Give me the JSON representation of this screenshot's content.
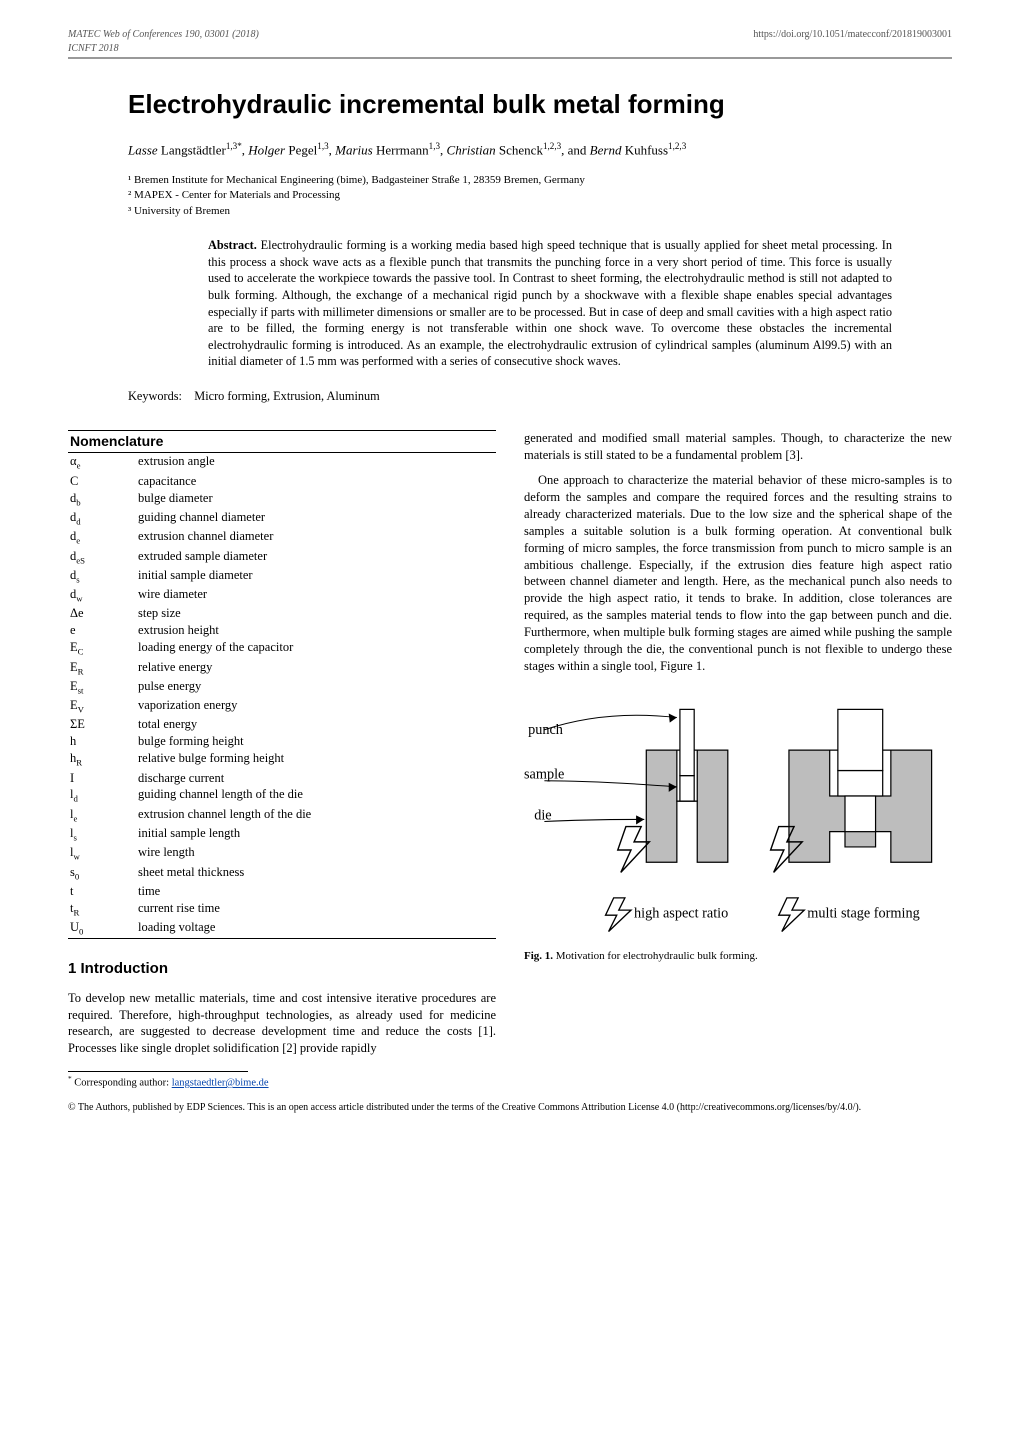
{
  "header": {
    "left_line1": "MATEC Web of Conferences 190, 03001 (2018)",
    "left_line2": "ICNFT 2018",
    "right": "https://doi.org/10.1051/matecconf/201819003001"
  },
  "title": "Electrohydraulic incremental bulk metal forming",
  "authors_html": "<span class='first'>Lasse</span> Langstädtler<sup>1,3*</sup>, <span class='first'>Holger</span> Pegel<sup>1,3</sup>, <span class='first'>Marius</span> Herrmann<sup>1,3</sup>, <span class='first'>Christian</span> Schenck<sup>1,2,3</sup>, and <span class='first'>Bernd</span> Kuhfuss<sup>1,2,3</sup>",
  "affiliations": [
    "¹ Bremen Institute for Mechanical Engineering (bime), Badgasteiner Straße 1, 28359 Bremen, Germany",
    "² MAPEX - Center for Materials and Processing",
    "³ University of Bremen"
  ],
  "abstract": {
    "label": "Abstract.",
    "text": "Electrohydraulic forming is a working media based high speed technique that is usually applied for sheet metal processing. In this process a shock wave acts as a flexible punch that transmits the punching force in a very short period of time. This force is usually used to accelerate the workpiece towards the passive tool. In Contrast to sheet forming, the electrohydraulic method is still not adapted to bulk forming. Although, the exchange of a mechanical rigid punch by a shockwave with a flexible shape enables special advantages especially if parts with millimeter dimensions or smaller are to be processed. But in case of deep and small cavities with a high aspect ratio are to be filled, the forming energy is not transferable within one shock wave. To overcome these obstacles the incremental electrohydraulic forming is introduced. As an example, the electrohydraulic extrusion of cylindrical samples (aluminum Al99.5) with an initial diameter of 1.5 mm was performed with a series of consecutive shock waves."
  },
  "keywords": {
    "label": "Keywords:",
    "text": "Micro forming, Extrusion, Aluminum"
  },
  "nomenclature": {
    "title": "Nomenclature",
    "rows": [
      {
        "sym": "α<sub>e</sub>",
        "desc": "extrusion angle"
      },
      {
        "sym": "C",
        "desc": "capacitance"
      },
      {
        "sym": "d<sub>b</sub>",
        "desc": "bulge diameter"
      },
      {
        "sym": "d<sub>d</sub>",
        "desc": "guiding channel diameter"
      },
      {
        "sym": "d<sub>e</sub>",
        "desc": "extrusion channel diameter"
      },
      {
        "sym": "d<sub>eS</sub>",
        "desc": "extruded sample diameter"
      },
      {
        "sym": "d<sub>s</sub>",
        "desc": "initial sample diameter"
      },
      {
        "sym": "d<sub>w</sub>",
        "desc": "wire diameter"
      },
      {
        "sym": "Δe",
        "desc": "step size"
      },
      {
        "sym": "e",
        "desc": "extrusion height"
      },
      {
        "sym": "E<sub>C</sub>",
        "desc": "loading energy of the capacitor"
      },
      {
        "sym": "E<sub>R</sub>",
        "desc": "relative energy"
      },
      {
        "sym": "E<sub>st</sub>",
        "desc": "pulse energy"
      },
      {
        "sym": "E<sub>V</sub>",
        "desc": "vaporization energy"
      },
      {
        "sym": "ΣE",
        "desc": "total energy"
      },
      {
        "sym": "h",
        "desc": "bulge forming height"
      },
      {
        "sym": "h<sub>R</sub>",
        "desc": "relative bulge forming height"
      },
      {
        "sym": "I",
        "desc": "discharge current"
      },
      {
        "sym": "l<sub>d</sub>",
        "desc": "guiding channel length of the die"
      },
      {
        "sym": "l<sub>e</sub>",
        "desc": "extrusion channel length of the die"
      },
      {
        "sym": "l<sub>s</sub>",
        "desc": "initial sample length"
      },
      {
        "sym": "l<sub>w</sub>",
        "desc": "wire length"
      },
      {
        "sym": "s<sub>0</sub>",
        "desc": "sheet metal thickness"
      },
      {
        "sym": "t",
        "desc": "time"
      },
      {
        "sym": "t<sub>R</sub>",
        "desc": "current rise time"
      },
      {
        "sym": "U<sub>0</sub>",
        "desc": "loading voltage"
      }
    ]
  },
  "introduction": {
    "heading": "1 Introduction",
    "para1": "To develop new metallic materials, time and cost intensive iterative procedures are required. Therefore, high-throughput technologies, as already used for medicine research, are suggested to decrease development time and reduce the costs [1]. Processes like single droplet solidification [2] provide rapidly",
    "para2": "generated and modified small material samples. Though, to characterize the new materials is still stated to be a fundamental problem [3].",
    "para3": "One approach to characterize the material behavior of these micro-samples is to deform the samples and compare the required forces and the resulting strains to already characterized materials. Due to the low size and the spherical shape of the samples a suitable solution is a bulk forming operation. At conventional bulk forming of micro samples, the force transmission from punch to micro sample is an ambitious challenge. Especially, if the extrusion dies feature high aspect ratio between channel diameter and length. Here, as the mechanical punch also needs to provide the high aspect ratio, it tends to brake. In addition, close tolerances are required, as the samples material tends to flow into the gap between punch and die. Furthermore, when multiple bulk forming stages are aimed while pushing the sample completely through the die, the conventional punch is not flexible to undergo these stages within a single tool, Figure 1."
  },
  "figure1": {
    "labels": {
      "punch": "punch",
      "sample": "sample",
      "die": "die",
      "left_caption": "high aspect ratio",
      "right_caption": "multi stage forming"
    },
    "caption_label": "Fig. 1.",
    "caption_text": "Motivation for electrohydraulic bulk forming.",
    "colors": {
      "die_fill": "#bdbdbd",
      "die_stroke": "#000000",
      "punch_fill": "#ffffff",
      "sample_fill": "#ffffff",
      "bolt_stroke": "#000000",
      "text": "#000000"
    }
  },
  "footnote": {
    "marker": "*",
    "text": "Corresponding author:",
    "email": "langstaedtler@bime.de"
  },
  "license": "© The Authors, published by EDP Sciences. This is an open access article distributed under the terms of the Creative Commons Attribution License 4.0 (http://creativecommons.org/licenses/by/4.0/)."
}
